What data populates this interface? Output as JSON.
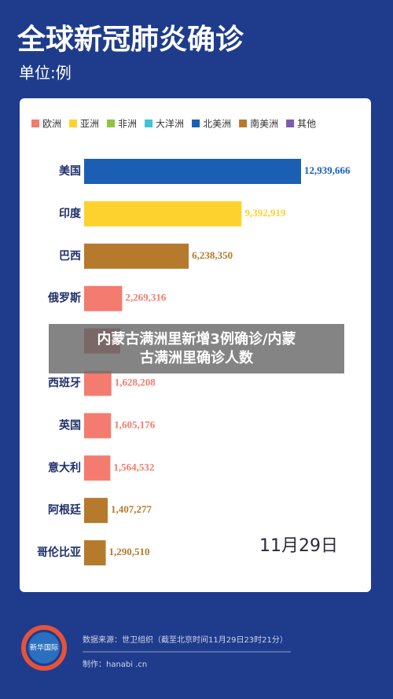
{
  "chart_data": {
    "type": "bar",
    "orientation": "horizontal",
    "title": "全球新冠肺炎确诊",
    "subtitle": "单位:例",
    "legend": [
      {
        "name": "欧洲",
        "color": "#f47b6f"
      },
      {
        "name": "亚洲",
        "color": "#fdd22f"
      },
      {
        "name": "非洲",
        "color": "#8cc63f"
      },
      {
        "name": "大洋洲",
        "color": "#3fc6d0"
      },
      {
        "name": "北美洲",
        "color": "#1a5fb4"
      },
      {
        "name": "南美洲",
        "color": "#b57a2c"
      },
      {
        "name": "其他",
        "color": "#7d5ab0"
      }
    ],
    "categories": [
      "美国",
      "印度",
      "巴西",
      "俄罗斯",
      null,
      "西班牙",
      "英国",
      "意大利",
      "阿根廷",
      "哥伦比亚"
    ],
    "values": [
      12939666,
      9392919,
      6238350,
      2269316,
      2150000,
      1628208,
      1605176,
      1564532,
      1407277,
      1290510
    ],
    "value_labels": [
      "12,939,666",
      "9,392,919",
      "6,238,350",
      "2,269,316",
      null,
      "1,628,208",
      "1,605,176",
      "1,564,532",
      "1,407,277",
      "1,290,510"
    ],
    "colors": [
      "#1a5fb4",
      "#fdd22f",
      "#b57a2c",
      "#f47b6f",
      "#b5473f",
      "#f47b6f",
      "#f47b6f",
      "#f47b6f",
      "#b57a2c",
      "#b57a2c"
    ],
    "date": "11月29日",
    "overlay": "内蒙古满洲里新增3例确诊/内蒙古满洲里确诊人数",
    "source": "数据来源：世卫组织（截至北京时间11月29日23时21分）",
    "credit": "制作：hanabi .cn",
    "logo": "新华国际"
  }
}
